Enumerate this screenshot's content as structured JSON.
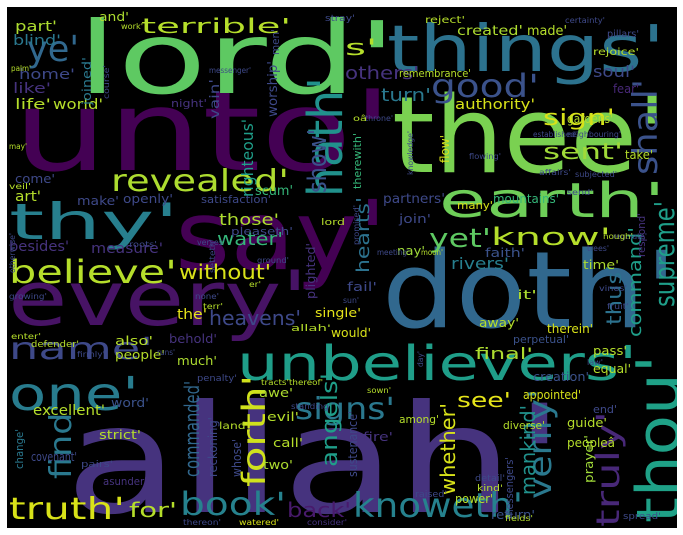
{
  "wordcloud": {
    "background": "#000000",
    "words": [
      {
        "text": "allah'",
        "color": "#46337e"
      },
      {
        "text": "unto'",
        "color": "#440154"
      },
      {
        "text": "lord'",
        "color": "#5ec962"
      },
      {
        "text": "thee'",
        "color": "#7ad151"
      },
      {
        "text": "doth'",
        "color": "#31688e"
      },
      {
        "text": "every'",
        "color": "#471365"
      },
      {
        "text": "say'",
        "color": "#440154"
      },
      {
        "text": "things'",
        "color": "#2c728e"
      },
      {
        "text": "earth'",
        "color": "#6ece58"
      },
      {
        "text": "thou'",
        "color": "#1fa187"
      },
      {
        "text": "unbelievers'",
        "color": "#1f9e89"
      },
      {
        "text": "thy'",
        "color": "#277f8e"
      },
      {
        "text": "hath'",
        "color": "#21918c"
      },
      {
        "text": "revealed'",
        "color": "#addc30"
      },
      {
        "text": "one'",
        "color": "#287c8e"
      },
      {
        "text": "name'",
        "color": "#3e4989"
      },
      {
        "text": "believe'",
        "color": "#b5de2b"
      },
      {
        "text": "good'",
        "color": "#3b528b"
      },
      {
        "text": "ye'",
        "color": "#31688e"
      },
      {
        "text": "book'",
        "color": "#26828e"
      },
      {
        "text": "knoweth'",
        "color": "#26828e"
      },
      {
        "text": "truth'",
        "color": "#d8e219"
      },
      {
        "text": "signs'",
        "color": "#2a788e"
      },
      {
        "text": "forth'",
        "color": "#d0e11c"
      },
      {
        "text": "find'",
        "color": "#2a788e"
      },
      {
        "text": "verily'",
        "color": "#2a788e"
      },
      {
        "text": "truly'",
        "color": "#482878"
      },
      {
        "text": "shall'",
        "color": "#3b528b"
      },
      {
        "text": "supreme'",
        "color": "#1f9e89"
      },
      {
        "text": "yet'",
        "color": "#5ec962"
      },
      {
        "text": "know'",
        "color": "#b5de2b"
      },
      {
        "text": "terrible'",
        "color": "#b5de2b"
      },
      {
        "text": "show'",
        "color": "#3b528b"
      },
      {
        "text": "sent'",
        "color": "#a0da39"
      },
      {
        "text": "sign'",
        "color": "#d8e219"
      },
      {
        "text": "thus'",
        "color": "#2c728e"
      },
      {
        "text": "command'",
        "color": "#1f9e89"
      },
      {
        "text": "heavens'",
        "color": "#3e4989"
      },
      {
        "text": "angels'",
        "color": "#1f9e89"
      },
      {
        "text": "hearts'",
        "color": "#2c728e"
      },
      {
        "text": "without'",
        "color": "#d8e219"
      },
      {
        "text": "commanded'",
        "color": "#31688e"
      },
      {
        "text": "whether'",
        "color": "#d8e219"
      },
      {
        "text": "back'",
        "color": "#481a6c"
      },
      {
        "text": "mankind'",
        "color": "#21918c"
      },
      {
        "text": "others'",
        "color": "#46337e"
      },
      {
        "text": "s'",
        "color": "#b5de2b"
      },
      {
        "text": "water'",
        "color": "#35b779"
      },
      {
        "text": "those'",
        "color": "#addc30"
      },
      {
        "text": "see'",
        "color": "#e5e419"
      },
      {
        "text": "final'",
        "color": "#addc30"
      },
      {
        "text": "for'",
        "color": "#b5de2b"
      },
      {
        "text": "rivers'",
        "color": "#277f8e"
      },
      {
        "text": "authority'",
        "color": "#d8e219"
      },
      {
        "text": "turn'",
        "color": "#2a788e"
      },
      {
        "text": "soul'",
        "color": "#3e4989"
      },
      {
        "text": "home'",
        "color": "#3e4989"
      },
      {
        "text": "life'",
        "color": "#b5de2b"
      },
      {
        "text": "world'",
        "color": "#b5de2b"
      },
      {
        "text": "like'",
        "color": "#46337e"
      },
      {
        "text": "part'",
        "color": "#addc30"
      },
      {
        "text": "blind'",
        "color": "#2a788e"
      },
      {
        "text": "and'",
        "color": "#addc30"
      },
      {
        "text": "created'",
        "color": "#addc30"
      },
      {
        "text": "made'",
        "color": "#b5de2b"
      },
      {
        "text": "reject'",
        "color": "#b5de2b"
      },
      {
        "text": "rejoice'",
        "color": "#b5de2b"
      },
      {
        "text": "joined'",
        "color": "#2a788e"
      },
      {
        "text": "vain'",
        "color": "#3e4989"
      },
      {
        "text": "worship'",
        "color": "#3e4989"
      },
      {
        "text": "men'",
        "color": "#3e4989"
      },
      {
        "text": "righteous'",
        "color": "#1f9e89"
      },
      {
        "text": "night'",
        "color": "#46337e"
      },
      {
        "text": "scum'",
        "color": "#35b779"
      },
      {
        "text": "therewith'",
        "color": "#35b779"
      },
      {
        "text": "remembrance'",
        "color": "#b5de2b"
      },
      {
        "text": "partners'",
        "color": "#3e4989"
      },
      {
        "text": "mountains'",
        "color": "#35b779"
      },
      {
        "text": "gardens'",
        "color": "#b5de2b"
      },
      {
        "text": "fear'",
        "color": "#482878"
      },
      {
        "text": "take'",
        "color": "#b5de2b"
      },
      {
        "text": "flow'",
        "color": "#d8e219"
      },
      {
        "text": "join'",
        "color": "#3e4989"
      },
      {
        "text": "respond'",
        "color": "#46337e"
      },
      {
        "text": "many'",
        "color": "#d8e219"
      },
      {
        "text": "time'",
        "color": "#addc30"
      },
      {
        "text": "faith'",
        "color": "#3b528b"
      },
      {
        "text": "nay'",
        "color": "#a0da39"
      },
      {
        "text": "plighted'",
        "color": "#46337e"
      },
      {
        "text": "fail'",
        "color": "#3e4989"
      },
      {
        "text": "single'",
        "color": "#e5e419"
      },
      {
        "text": "it'",
        "color": "#addc30"
      },
      {
        "text": "away'",
        "color": "#b5de2b"
      },
      {
        "text": "therein'",
        "color": "#d8e219"
      },
      {
        "text": "perpetual'",
        "color": "#3b528b"
      },
      {
        "text": "pass'",
        "color": "#b5de2b"
      },
      {
        "text": "equal'",
        "color": "#b5de2b"
      },
      {
        "text": "creation'",
        "color": "#3b528b"
      },
      {
        "text": "appointed'",
        "color": "#d8e219"
      },
      {
        "text": "guide'",
        "color": "#b5de2b"
      },
      {
        "text": "prayer'",
        "color": "#a0da39"
      },
      {
        "text": "end'",
        "color": "#3e4989"
      },
      {
        "text": "also'",
        "color": "#b5de2b"
      },
      {
        "text": "the'",
        "color": "#e5e419"
      },
      {
        "text": "behold'",
        "color": "#46337e"
      },
      {
        "text": "people'",
        "color": "#b5de2b"
      },
      {
        "text": "much'",
        "color": "#addc30"
      },
      {
        "text": "would'",
        "color": "#d8e219"
      },
      {
        "text": "excellent'",
        "color": "#b5de2b"
      },
      {
        "text": "word'",
        "color": "#3b528b"
      },
      {
        "text": "awe'",
        "color": "#addc30"
      },
      {
        "text": "evil'",
        "color": "#b5de2b"
      },
      {
        "text": "fire'",
        "color": "#46337e"
      },
      {
        "text": "call'",
        "color": "#b5de2b"
      },
      {
        "text": "two'",
        "color": "#addc30"
      },
      {
        "text": "strict'",
        "color": "#b5de2b"
      },
      {
        "text": "covenant'",
        "color": "#3e4989"
      },
      {
        "text": "change'",
        "color": "#2a788e"
      },
      {
        "text": "reckoning'",
        "color": "#3e4989"
      },
      {
        "text": "whose'",
        "color": "#3e4989"
      },
      {
        "text": "sustenance'",
        "color": "#3e4989"
      },
      {
        "text": "power'",
        "color": "#b5de2b"
      },
      {
        "text": "return'",
        "color": "#3b528b"
      },
      {
        "text": "messengers'",
        "color": "#3e4989"
      },
      {
        "text": "diverse'",
        "color": "#b5de2b"
      },
      {
        "text": "peopleâ",
        "color": "#b5de2b"
      },
      {
        "text": "among'",
        "color": "#b5de2b"
      },
      {
        "text": "asunder'",
        "color": "#46337e"
      },
      {
        "text": "consider'",
        "color": "#46337e"
      },
      {
        "text": "watered'",
        "color": "#d8e219"
      },
      {
        "text": "thereon'",
        "color": "#3e4989"
      },
      {
        "text": "spread'",
        "color": "#3e4989"
      },
      {
        "text": "raised'",
        "color": "#3e4989"
      },
      {
        "text": "kind'",
        "color": "#b5de2b"
      },
      {
        "text": "detail'",
        "color": "#3e4989"
      },
      {
        "text": "land'",
        "color": "#b5de2b"
      },
      {
        "text": "pairs'",
        "color": "#3e4989"
      },
      {
        "text": "besides'",
        "color": "#46337e"
      },
      {
        "text": "measure'",
        "color": "#46337e"
      },
      {
        "text": "art'",
        "color": "#b5de2b"
      },
      {
        "text": "come'",
        "color": "#3e4989"
      },
      {
        "text": "make'",
        "color": "#3e4989"
      },
      {
        "text": "openly'",
        "color": "#3e4989"
      },
      {
        "text": "satisfaction'",
        "color": "#3e4989"
      },
      {
        "text": "pleaseth'",
        "color": "#3e4989"
      },
      {
        "text": "verses'",
        "color": "#3e4989"
      },
      {
        "text": "meeting'",
        "color": "#3e4989"
      },
      {
        "text": "moon'",
        "color": "#b5de2b"
      },
      {
        "text": "trees'",
        "color": "#3e4989"
      },
      {
        "text": "regulate'",
        "color": "#3e4989"
      },
      {
        "text": "vines'",
        "color": "#3e4989"
      },
      {
        "text": "fruit'",
        "color": "#3e4989"
      },
      {
        "text": "send'",
        "color": "#3e4989"
      },
      {
        "text": "affairs'",
        "color": "#3e4989"
      },
      {
        "text": "subjected'",
        "color": "#3e4989"
      },
      {
        "text": "flowing'",
        "color": "#3e4989"
      },
      {
        "text": "knowledge'",
        "color": "#3e4989"
      },
      {
        "text": "established'",
        "color": "#3e4989"
      },
      {
        "text": "neighbouring'",
        "color": "#3e4989"
      },
      {
        "text": "throne'",
        "color": "#3e4989"
      },
      {
        "text": "stray'",
        "color": "#3e4989"
      },
      {
        "text": "certainty'",
        "color": "#3e4989"
      },
      {
        "text": "pillars'",
        "color": "#3e4989"
      },
      {
        "text": "work'",
        "color": "#b5de2b"
      },
      {
        "text": "messenger'",
        "color": "#3e4989"
      },
      {
        "text": "palm'",
        "color": "#b5de2b"
      },
      {
        "text": "may'",
        "color": "#b5de2b"
      },
      {
        "text": "veil'",
        "color": "#b5de2b"
      },
      {
        "text": "course'",
        "color": "#3e4989"
      },
      {
        "text": "lord",
        "color": "#b5de2b"
      },
      {
        "text": "promised'",
        "color": "#3e4989"
      },
      {
        "text": "ground'",
        "color": "#3e4989"
      },
      {
        "text": "setteth'",
        "color": "#3e4989"
      },
      {
        "text": "otherwise'",
        "color": "#3e4989"
      },
      {
        "text": "growing'",
        "color": "#3e4989"
      },
      {
        "text": "none'",
        "color": "#3e4989"
      },
      {
        "text": "er'",
        "color": "#b5de2b"
      },
      {
        "text": "sun'",
        "color": "#3e4989"
      },
      {
        "text": "terr'",
        "color": "#b5de2b"
      },
      {
        "text": "allah'",
        "color": "#b5de2b"
      },
      {
        "text": "enter'",
        "color": "#b5de2b"
      },
      {
        "text": "defender'",
        "color": "#b5de2b"
      },
      {
        "text": "firmly'",
        "color": "#3e4989"
      },
      {
        "text": "runs'",
        "color": "#3e4989"
      },
      {
        "text": "penalty'",
        "color": "#3e4989"
      },
      {
        "text": "tracts'",
        "color": "#b5de2b"
      },
      {
        "text": "thereof'",
        "color": "#b5de2b"
      },
      {
        "text": "sown'",
        "color": "#b5de2b"
      },
      {
        "text": "standing'",
        "color": "#3e4989"
      },
      {
        "text": "day'",
        "color": "#3e4989"
      },
      {
        "text": "law'",
        "color": "#3e4989"
      },
      {
        "text": "roots'",
        "color": "#3e4989"
      },
      {
        "text": "fields'",
        "color": "#b5de2b"
      },
      {
        "text": "hough'",
        "color": "#b5de2b"
      },
      {
        "text": "oâ",
        "color": "#b5de2b"
      }
    ]
  }
}
